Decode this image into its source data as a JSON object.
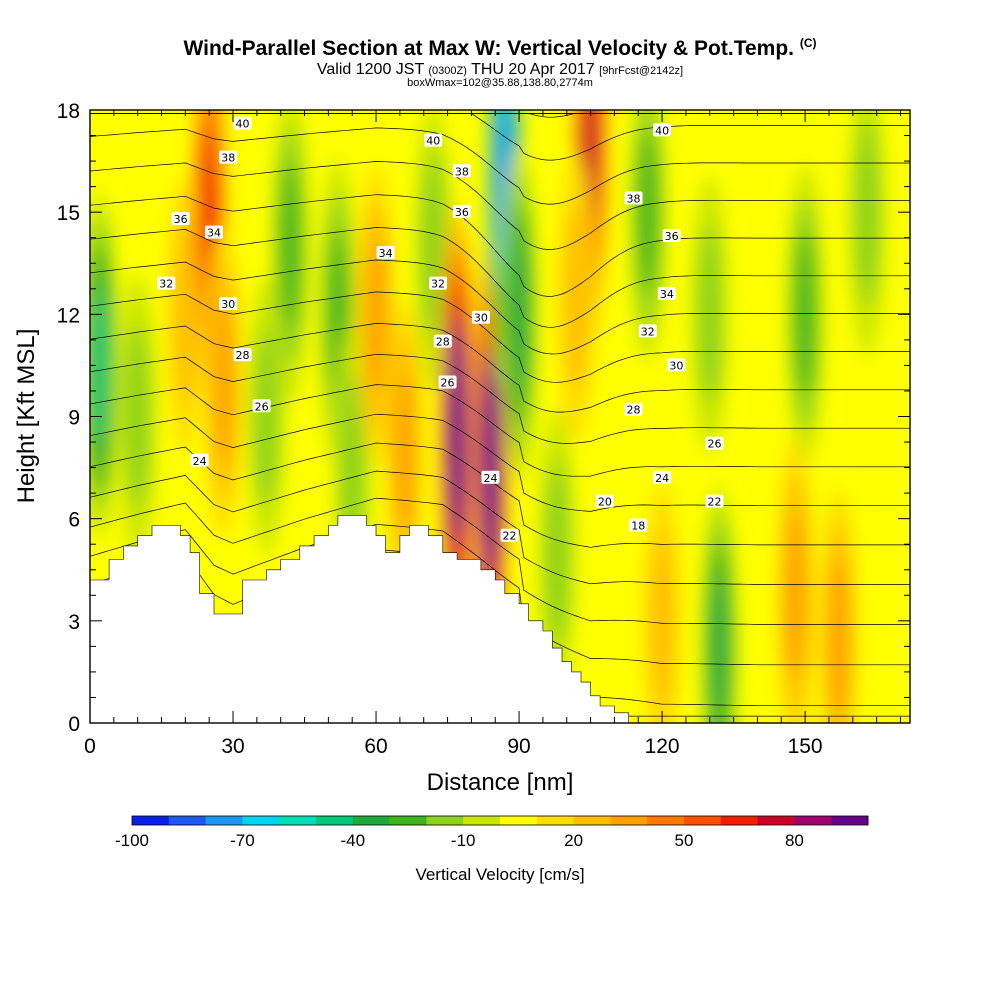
{
  "header": {
    "title": "Wind-Parallel Section at Max W: Vertical Velocity & Pot.Temp.",
    "copyright": "(C)",
    "valid_prefix": "Valid 1200 JST",
    "valid_utc": "(0300Z)",
    "valid_date": "THU 20 Apr 2017",
    "forecast": "[9hrFcst@2142z]",
    "box_info": "boxWmax=102@35.88,138.80,2774m"
  },
  "chart_data": {
    "type": "heatmap",
    "xlabel": "Distance [nm]",
    "ylabel": "Height [Kft MSL]",
    "xlim": [
      0,
      172
    ],
    "ylim": [
      0,
      18
    ],
    "xticks": [
      0,
      30,
      60,
      90,
      120,
      150
    ],
    "yticks": [
      0,
      3,
      6,
      9,
      12,
      15,
      18
    ],
    "xtick_labels": [
      "0",
      "30",
      "60",
      "90",
      "120",
      "150"
    ],
    "ytick_labels": [
      "0",
      "3",
      "6",
      "9",
      "12",
      "15",
      "18"
    ],
    "colorbar": {
      "label": "Vertical Velocity [cm/s]",
      "min": -100,
      "max": 100,
      "tick_values": [
        -100,
        -70,
        -40,
        -10,
        20,
        50,
        80
      ],
      "tick_labels": [
        "-100",
        "-70",
        "-40",
        "-10",
        "20",
        "50",
        "80"
      ],
      "colors": [
        "#0a1ee6",
        "#1e5af0",
        "#1e96f0",
        "#00d2f0",
        "#00dcb4",
        "#00c878",
        "#1eaa3c",
        "#3cb41e",
        "#8cd21e",
        "#c8e600",
        "#ffff00",
        "#ffdc00",
        "#ffbe00",
        "#ffa000",
        "#ff7800",
        "#ff5000",
        "#f01e00",
        "#c80028",
        "#a0006e",
        "#64008c"
      ]
    },
    "updrafts": [
      {
        "x": 2,
        "y": 10.5,
        "w": -45
      },
      {
        "x": 10,
        "y": 9,
        "w": -20
      },
      {
        "x": 20,
        "y": 12,
        "w": 15
      },
      {
        "x": 25,
        "y": 15,
        "w": 55
      },
      {
        "x": 28,
        "y": 10,
        "w": 30
      },
      {
        "x": 42,
        "y": 14,
        "w": -30
      },
      {
        "x": 37,
        "y": 9,
        "w": -15
      },
      {
        "x": 52,
        "y": 12,
        "w": -30
      },
      {
        "x": 55,
        "y": 7.5,
        "w": -20
      },
      {
        "x": 60,
        "y": 12,
        "w": 25
      },
      {
        "x": 66,
        "y": 8,
        "w": 25
      },
      {
        "x": 72,
        "y": 14,
        "w": -20
      },
      {
        "x": 77,
        "y": 8.5,
        "w": 95
      },
      {
        "x": 84,
        "y": 7.5,
        "w": 95
      },
      {
        "x": 87,
        "y": 16,
        "w": -80
      },
      {
        "x": 90,
        "y": 12,
        "w": -40
      },
      {
        "x": 105,
        "y": 17,
        "w": 70
      },
      {
        "x": 102,
        "y": 12.5,
        "w": 20
      },
      {
        "x": 117,
        "y": 15,
        "w": -25
      },
      {
        "x": 130,
        "y": 12,
        "w": -15
      },
      {
        "x": 150,
        "y": 12,
        "w": -25
      },
      {
        "x": 163,
        "y": 15,
        "w": -20
      },
      {
        "x": 132,
        "y": 2.2,
        "w": -35
      },
      {
        "x": 148,
        "y": 3.8,
        "w": 30
      },
      {
        "x": 157,
        "y": 2.5,
        "w": 25
      },
      {
        "x": 120,
        "y": 3,
        "w": 15
      },
      {
        "x": 98,
        "y": 5,
        "w": -20
      }
    ],
    "terrain": [
      [
        0,
        4.2
      ],
      [
        4,
        4.2
      ],
      [
        4,
        4.8
      ],
      [
        7,
        4.8
      ],
      [
        7,
        5.2
      ],
      [
        10,
        5.2
      ],
      [
        10,
        5.5
      ],
      [
        13,
        5.5
      ],
      [
        13,
        5.8
      ],
      [
        19,
        5.8
      ],
      [
        19,
        5.5
      ],
      [
        21,
        5.5
      ],
      [
        21,
        5
      ],
      [
        23,
        5
      ],
      [
        23,
        3.8
      ],
      [
        26,
        3.8
      ],
      [
        26,
        3.2
      ],
      [
        32,
        3.2
      ],
      [
        32,
        4.2
      ],
      [
        37,
        4.2
      ],
      [
        37,
        4.5
      ],
      [
        40,
        4.5
      ],
      [
        40,
        4.8
      ],
      [
        44,
        4.8
      ],
      [
        44,
        5.2
      ],
      [
        47,
        5.2
      ],
      [
        47,
        5.5
      ],
      [
        50,
        5.5
      ],
      [
        50,
        5.8
      ],
      [
        52,
        5.8
      ],
      [
        52,
        6.1
      ],
      [
        58,
        6.1
      ],
      [
        58,
        5.8
      ],
      [
        60,
        5.8
      ],
      [
        60,
        5.5
      ],
      [
        62,
        5.5
      ],
      [
        62,
        5
      ],
      [
        65,
        5
      ],
      [
        65,
        5.5
      ],
      [
        67,
        5.5
      ],
      [
        67,
        5.8
      ],
      [
        71,
        5.8
      ],
      [
        71,
        5.5
      ],
      [
        74,
        5.5
      ],
      [
        74,
        5
      ],
      [
        77,
        5
      ],
      [
        77,
        4.8
      ],
      [
        82,
        4.8
      ],
      [
        82,
        4.5
      ],
      [
        85,
        4.5
      ],
      [
        85,
        4.2
      ],
      [
        87,
        4.2
      ],
      [
        87,
        3.8
      ],
      [
        90,
        3.8
      ],
      [
        90,
        3.5
      ],
      [
        92,
        3.5
      ],
      [
        92,
        3
      ],
      [
        95,
        3
      ],
      [
        95,
        2.7
      ],
      [
        97,
        2.7
      ],
      [
        97,
        2.2
      ],
      [
        99,
        2.2
      ],
      [
        99,
        1.8
      ],
      [
        101,
        1.8
      ],
      [
        101,
        1.5
      ],
      [
        103,
        1.5
      ],
      [
        103,
        1.2
      ],
      [
        105,
        1.2
      ],
      [
        105,
        0.8
      ],
      [
        107,
        0.8
      ],
      [
        107,
        0.5
      ],
      [
        110,
        0.5
      ],
      [
        110,
        0.3
      ],
      [
        113,
        0.3
      ],
      [
        113,
        0
      ],
      [
        172,
        0
      ]
    ],
    "isentropes": [
      18,
      20,
      22,
      24,
      26,
      28,
      30,
      32,
      34,
      36,
      38,
      40
    ],
    "contour_labels": [
      {
        "text": "40",
        "x": 32,
        "y": 17.6
      },
      {
        "text": "38",
        "x": 29,
        "y": 16.6
      },
      {
        "text": "36",
        "x": 19,
        "y": 14.8
      },
      {
        "text": "34",
        "x": 26,
        "y": 14.4
      },
      {
        "text": "32",
        "x": 16,
        "y": 12.9
      },
      {
        "text": "30",
        "x": 29,
        "y": 12.3
      },
      {
        "text": "28",
        "x": 32,
        "y": 10.8
      },
      {
        "text": "26",
        "x": 36,
        "y": 9.3
      },
      {
        "text": "24",
        "x": 23,
        "y": 7.7
      },
      {
        "text": "34",
        "x": 62,
        "y": 13.8
      },
      {
        "text": "32",
        "x": 73,
        "y": 12.9
      },
      {
        "text": "40",
        "x": 72,
        "y": 17.1
      },
      {
        "text": "38",
        "x": 78,
        "y": 16.2
      },
      {
        "text": "36",
        "x": 78,
        "y": 15
      },
      {
        "text": "30",
        "x": 82,
        "y": 11.9
      },
      {
        "text": "28",
        "x": 74,
        "y": 11.2
      },
      {
        "text": "26",
        "x": 75,
        "y": 10
      },
      {
        "text": "24",
        "x": 84,
        "y": 7.2
      },
      {
        "text": "22",
        "x": 88,
        "y": 5.5
      },
      {
        "text": "40",
        "x": 120,
        "y": 17.4
      },
      {
        "text": "38",
        "x": 114,
        "y": 15.4
      },
      {
        "text": "36",
        "x": 122,
        "y": 14.3
      },
      {
        "text": "34",
        "x": 121,
        "y": 12.6
      },
      {
        "text": "32",
        "x": 117,
        "y": 11.5
      },
      {
        "text": "30",
        "x": 123,
        "y": 10.5
      },
      {
        "text": "28",
        "x": 114,
        "y": 9.2
      },
      {
        "text": "26",
        "x": 131,
        "y": 8.2
      },
      {
        "text": "24",
        "x": 120,
        "y": 7.2
      },
      {
        "text": "22",
        "x": 131,
        "y": 6.5
      },
      {
        "text": "20",
        "x": 108,
        "y": 6.5
      },
      {
        "text": "18",
        "x": 115,
        "y": 5.8
      }
    ]
  }
}
